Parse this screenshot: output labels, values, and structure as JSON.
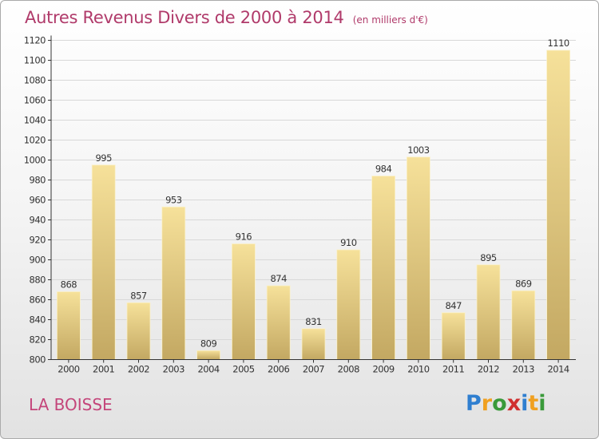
{
  "title": "Autres Revenus Divers de 2000 à 2014",
  "unit_label": "(en milliers d'€)",
  "commune": "LA BOISSE",
  "logo": {
    "letters": [
      "P",
      "r",
      "o",
      "x",
      "i",
      "t",
      "i"
    ],
    "colors": [
      "#2f7fd0",
      "#f0a020",
      "#3a9a3a",
      "#d03030",
      "#2f7fd0",
      "#f0a020",
      "#3a9a3a"
    ]
  },
  "colors": {
    "bar_top": "#f6e19a",
    "bar_bottom": "#c3a862",
    "axis": "#333333",
    "grid": "#d8d8d8",
    "title": "#b03a6a"
  },
  "chart_data": {
    "type": "bar",
    "title": "Autres Revenus Divers de 2000 à 2014",
    "subtitle": "(en milliers d'€)",
    "xlabel": "",
    "ylabel": "",
    "categories": [
      "2000",
      "2001",
      "2002",
      "2003",
      "2004",
      "2005",
      "2006",
      "2007",
      "2008",
      "2009",
      "2010",
      "2011",
      "2012",
      "2013",
      "2014"
    ],
    "values": [
      868,
      995,
      857,
      953,
      809,
      916,
      874,
      831,
      910,
      984,
      1003,
      847,
      895,
      869,
      1110
    ],
    "ylim": [
      800,
      1120
    ],
    "yticks": [
      800,
      820,
      840,
      860,
      880,
      900,
      920,
      940,
      960,
      980,
      1000,
      1020,
      1040,
      1060,
      1080,
      1100,
      1120
    ],
    "grid": true,
    "data_labels": true
  }
}
